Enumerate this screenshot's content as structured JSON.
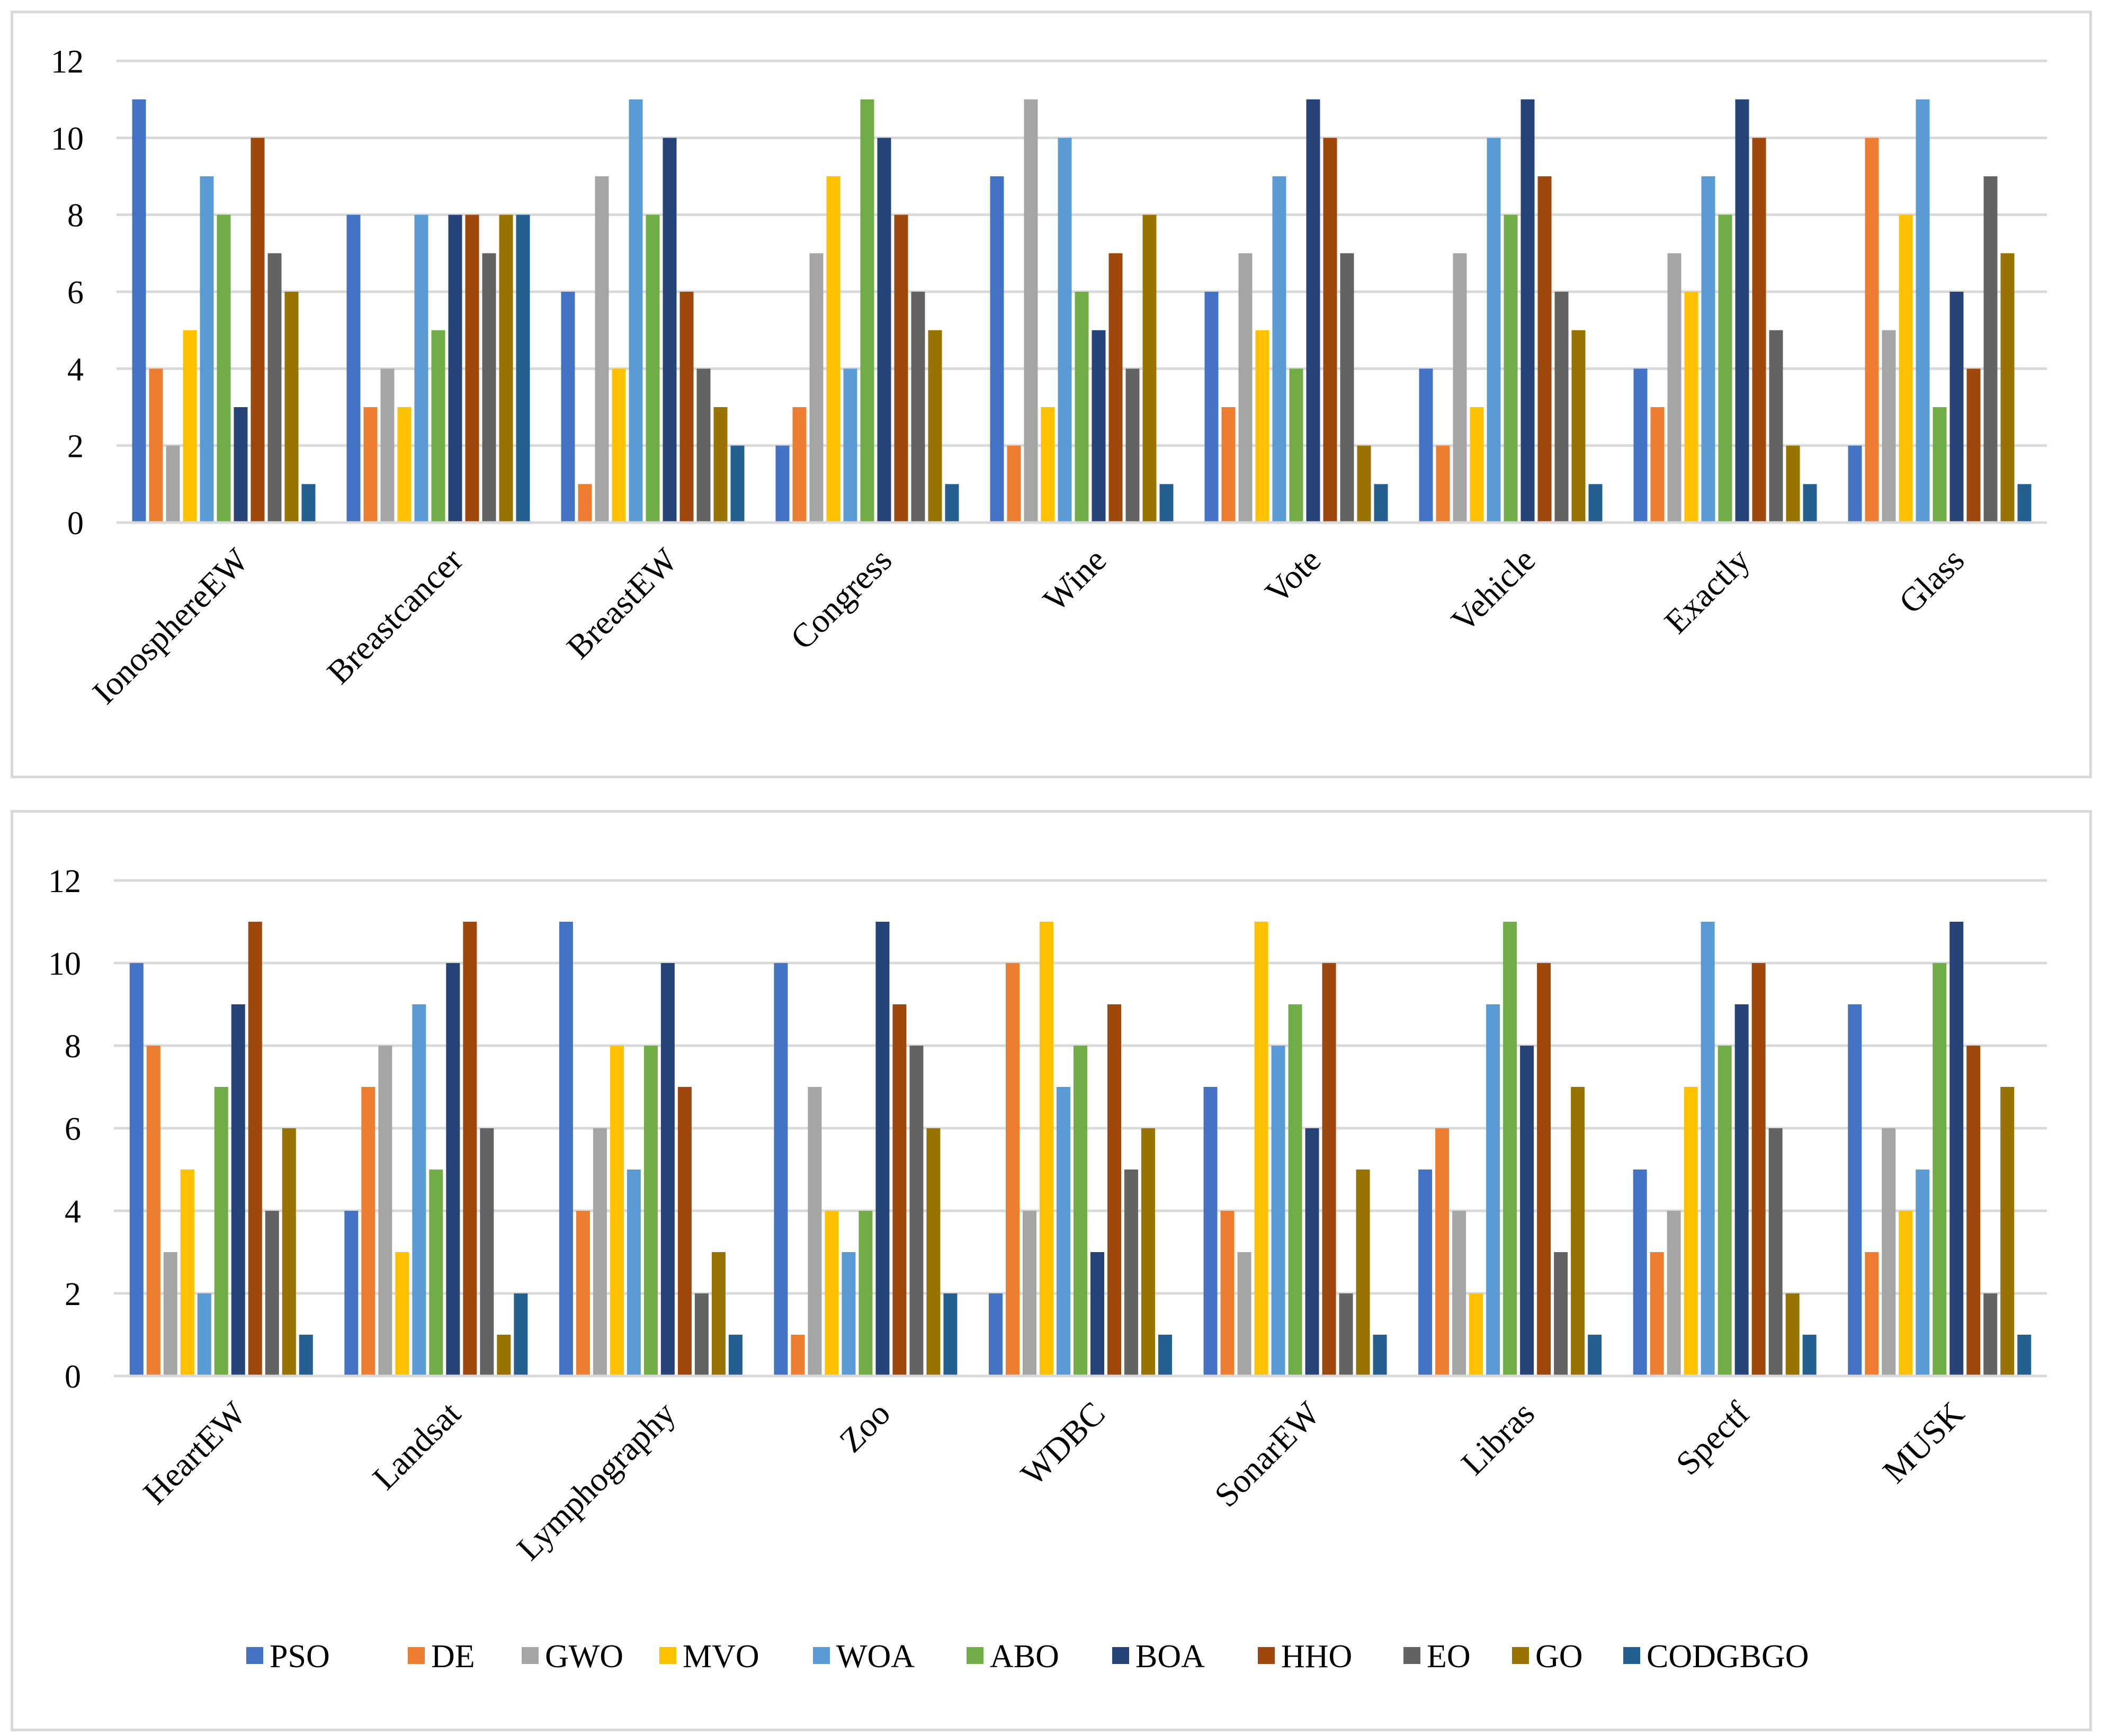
{
  "chart_data": [
    {
      "type": "bar",
      "title": "",
      "xlabel": "",
      "ylabel": "",
      "ylim": [
        0,
        12
      ],
      "yticks": [
        0,
        2,
        4,
        6,
        8,
        10,
        12
      ],
      "grid": true,
      "categories": [
        "IonosphereEW",
        "Breastcancer",
        "BreastEW",
        "Congress",
        "Wine",
        "Vote",
        "Vehicle",
        "Exactly",
        "Glass"
      ],
      "series": [
        {
          "name": "PSO",
          "values": [
            11,
            8,
            6,
            2,
            9,
            6,
            4,
            4,
            2
          ]
        },
        {
          "name": "DE",
          "values": [
            4,
            3,
            1,
            3,
            2,
            3,
            2,
            3,
            10
          ]
        },
        {
          "name": "GWO",
          "values": [
            2,
            4,
            9,
            7,
            11,
            7,
            7,
            7,
            5
          ]
        },
        {
          "name": "MVO",
          "values": [
            5,
            3,
            4,
            9,
            3,
            5,
            3,
            6,
            8
          ]
        },
        {
          "name": "WOA",
          "values": [
            9,
            8,
            11,
            4,
            10,
            9,
            10,
            9,
            11
          ]
        },
        {
          "name": "ABO",
          "values": [
            8,
            5,
            8,
            11,
            6,
            4,
            8,
            8,
            3
          ]
        },
        {
          "name": "BOA",
          "values": [
            3,
            8,
            10,
            10,
            5,
            11,
            11,
            11,
            6
          ]
        },
        {
          "name": "HHO",
          "values": [
            10,
            8,
            6,
            8,
            7,
            10,
            9,
            10,
            4
          ]
        },
        {
          "name": "EO",
          "values": [
            7,
            7,
            4,
            6,
            4,
            7,
            6,
            5,
            9
          ]
        },
        {
          "name": "GO",
          "values": [
            6,
            8,
            3,
            5,
            8,
            2,
            5,
            2,
            7
          ]
        },
        {
          "name": "CODGBGO",
          "values": [
            1,
            8,
            2,
            1,
            1,
            1,
            1,
            1,
            1
          ]
        }
      ]
    },
    {
      "type": "bar",
      "title": "",
      "xlabel": "",
      "ylabel": "",
      "ylim": [
        0,
        12
      ],
      "yticks": [
        0,
        2,
        4,
        6,
        8,
        10,
        12
      ],
      "grid": true,
      "legend": "bottom",
      "categories": [
        "HeartEW",
        "Landsat",
        "Lymphography",
        "Zoo",
        "WDBC",
        "SonarEW",
        "Libras",
        "Spectf",
        "MUSK"
      ],
      "series": [
        {
          "name": "PSO",
          "values": [
            10,
            4,
            11,
            10,
            2,
            7,
            5,
            5,
            9
          ]
        },
        {
          "name": "DE",
          "values": [
            8,
            7,
            4,
            1,
            10,
            4,
            6,
            3,
            3
          ]
        },
        {
          "name": "GWO",
          "values": [
            3,
            8,
            6,
            7,
            4,
            3,
            4,
            4,
            6
          ]
        },
        {
          "name": "MVO",
          "values": [
            5,
            3,
            8,
            4,
            11,
            11,
            2,
            7,
            4
          ]
        },
        {
          "name": "WOA",
          "values": [
            2,
            9,
            5,
            3,
            7,
            8,
            9,
            11,
            5
          ]
        },
        {
          "name": "ABO",
          "values": [
            7,
            5,
            8,
            4,
            8,
            9,
            11,
            8,
            10
          ]
        },
        {
          "name": "BOA",
          "values": [
            9,
            10,
            10,
            11,
            3,
            6,
            8,
            9,
            11
          ]
        },
        {
          "name": "HHO",
          "values": [
            11,
            11,
            7,
            9,
            9,
            10,
            10,
            10,
            8
          ]
        },
        {
          "name": "EO",
          "values": [
            4,
            6,
            2,
            8,
            5,
            2,
            3,
            6,
            2
          ]
        },
        {
          "name": "GO",
          "values": [
            6,
            1,
            3,
            6,
            6,
            5,
            7,
            2,
            7
          ]
        },
        {
          "name": "CODGBGO",
          "values": [
            1,
            2,
            1,
            2,
            1,
            1,
            1,
            1,
            1
          ]
        }
      ]
    }
  ],
  "colors": {
    "PSO": "#4472c4",
    "DE": "#ed7d31",
    "GWO": "#a5a5a5",
    "MVO": "#ffc000",
    "WOA": "#5b9bd5",
    "ABO": "#70ad47",
    "BOA": "#264478",
    "HHO": "#9e480e",
    "EO": "#636363",
    "GO": "#997300",
    "CODGBGO": "#255e91"
  }
}
